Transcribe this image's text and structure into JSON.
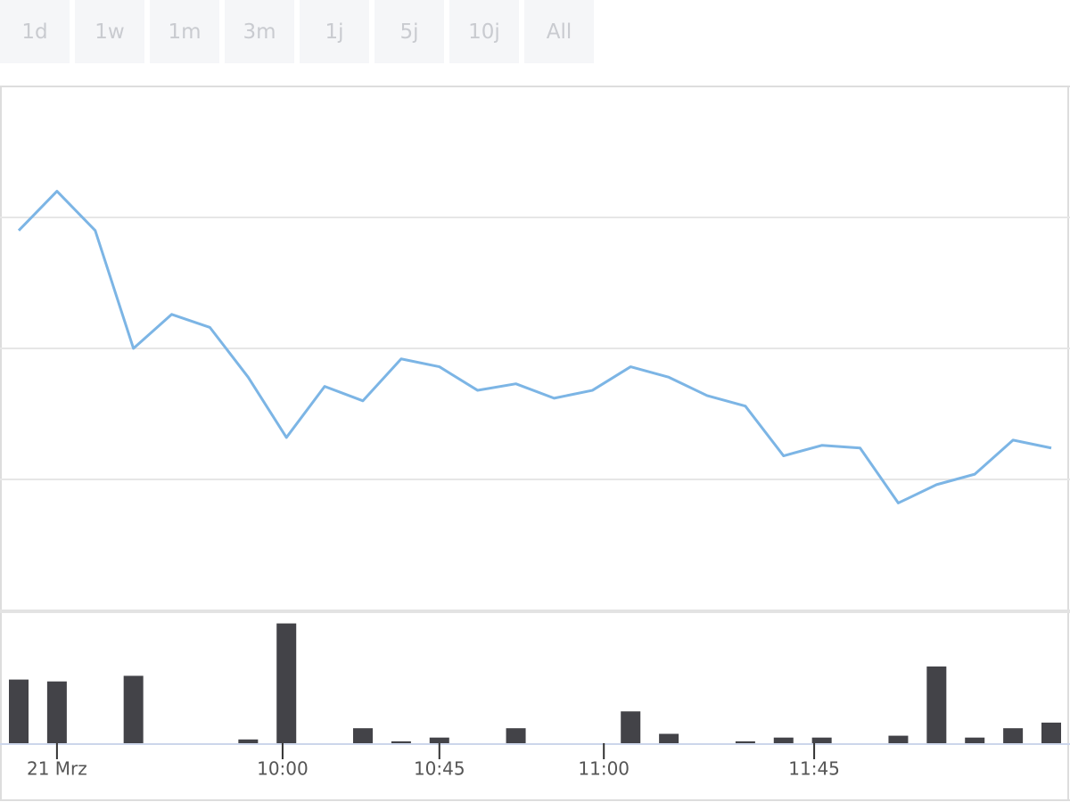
{
  "ranges": [
    "1d",
    "1w",
    "1m",
    "3m",
    "1j",
    "5j",
    "10j",
    "All"
  ],
  "chart_data": {
    "type": "line",
    "xlim": [
      0,
      27
    ],
    "xticks": [
      {
        "value": 1,
        "label": "21 Mrz"
      },
      {
        "value": 6.9,
        "label": "10:00"
      },
      {
        "value": 11,
        "label": "10:45"
      },
      {
        "value": 15.3,
        "label": "11:00"
      },
      {
        "value": 20.8,
        "label": "11:45"
      }
    ],
    "ylim": [
      0,
      4
    ],
    "yticks": [
      1,
      2,
      3
    ],
    "grid": true,
    "series": [
      {
        "color": "#7cb5e5",
        "values": [
          2.9,
          3.2,
          2.9,
          2.0,
          2.26,
          2.16,
          1.78,
          1.32,
          1.71,
          1.6,
          1.92,
          1.86,
          1.68,
          1.73,
          1.62,
          1.68,
          1.86,
          1.78,
          1.64,
          1.56,
          1.18,
          1.26,
          1.24,
          0.82,
          0.96,
          1.04,
          1.3,
          1.24
        ]
      }
    ],
    "volume": {
      "type": "bar",
      "color": "#434348",
      "ylim": [
        0,
        140
      ],
      "values": [
        68,
        66,
        0,
        72,
        0,
        0,
        4,
        128,
        0,
        16,
        2,
        6,
        0,
        16,
        0,
        0,
        34,
        10,
        0,
        2,
        6,
        6,
        0,
        8,
        82,
        6,
        16,
        22
      ]
    }
  }
}
